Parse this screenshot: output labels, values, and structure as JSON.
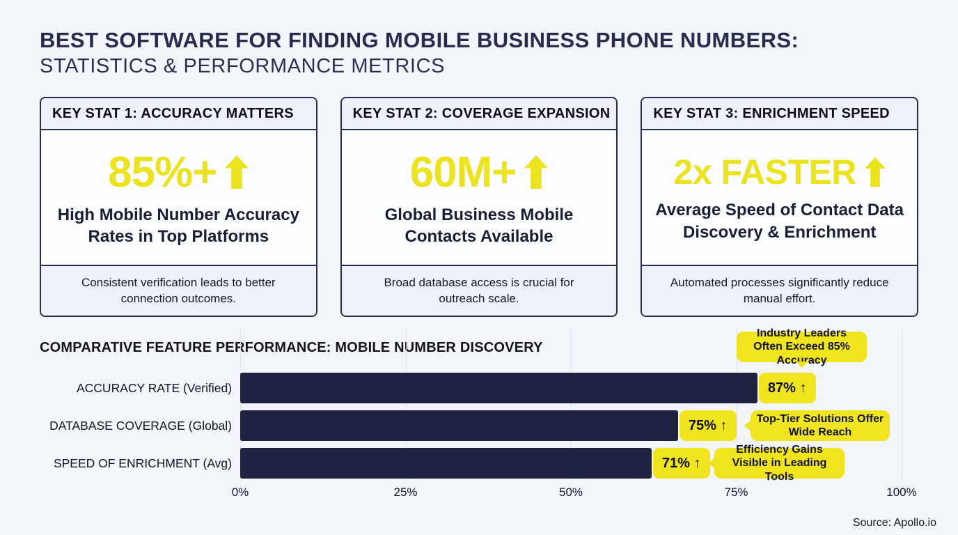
{
  "page": {
    "title_line1": "BEST SOFTWARE FOR FINDING MOBILE BUSINESS PHONE NUMBERS:",
    "title_line2": "STATISTICS & PERFORMANCE METRICS",
    "source": "Source: Apollo.io"
  },
  "colors": {
    "background": "#f2f5f9",
    "navy": "#1e2342",
    "title_navy": "#272c4e",
    "accent_yellow": "#f0e41f",
    "stat_yellow": "#ece31f"
  },
  "stat_cards": [
    {
      "header": "KEY STAT 1: ACCURACY MATTERS",
      "value": "85%+",
      "arrow_icon": "up-arrow",
      "label": "High Mobile Number Accuracy Rates in Top Platforms",
      "footnote": "Consistent verification leads to better connection outcomes."
    },
    {
      "header": "KEY STAT 2: COVERAGE EXPANSION",
      "value": "60M+",
      "arrow_icon": "up-arrow",
      "label": "Global Business Mobile Contacts Available",
      "footnote": "Broad database access is crucial for outreach scale."
    },
    {
      "header": "KEY STAT 3: ENRICHMENT SPEED",
      "value": "2x FASTER",
      "arrow_icon": "up-arrow",
      "label": "Average Speed of Contact Data Discovery & Enrichment",
      "footnote": "Automated processes significantly reduce manual effort."
    }
  ],
  "chart_data": {
    "type": "bar",
    "orientation": "horizontal",
    "title": "COMPARATIVE FEATURE PERFORMANCE: MOBILE NUMBER DISCOVERY",
    "categories": [
      "ACCURACY RATE (Verified)",
      "DATABASE COVERAGE (Global)",
      "SPEED OF ENRICHMENT (Avg)"
    ],
    "values": [
      87,
      75,
      71
    ],
    "value_labels": [
      "87% ↑",
      "75% ↑",
      "71% ↑"
    ],
    "annotations": [
      "Industry Leaders Often Exceed 85% Accuracy",
      "Top-Tier Solutions Offer Wide Reach",
      "Efficiency Gains Visible in Leading Tools"
    ],
    "xticks": [
      "0%",
      "25%",
      "50%",
      "75%",
      "100%"
    ],
    "xlim": [
      0,
      100
    ],
    "grid": true,
    "legend": false,
    "bar_color": "#1e2342",
    "value_label_color": "#f0e41f"
  }
}
